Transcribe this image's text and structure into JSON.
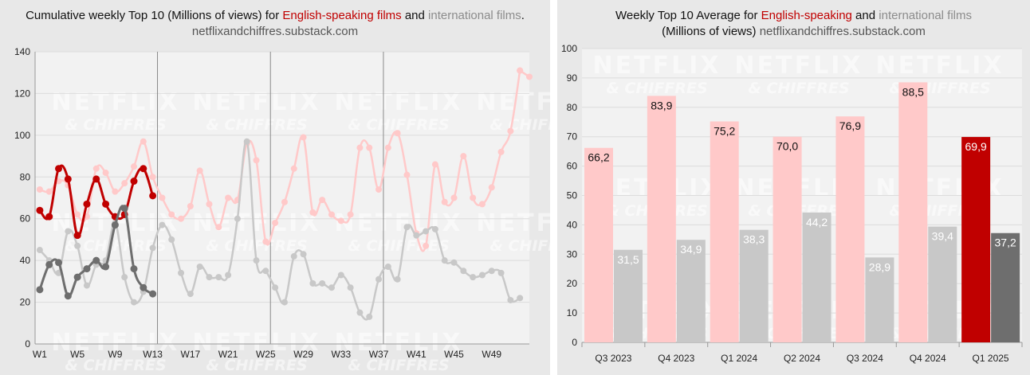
{
  "left": {
    "title_prefix": "Cumulative weekly Top 10 (Millions of views) for ",
    "title_en": "English-speaking films",
    "title_mid": " and ",
    "title_intl": "international films",
    "title_end": ".",
    "source": "netflixandchiffres.substack.com"
  },
  "right": {
    "title_prefix": "Weekly Top 10 Average for ",
    "title_en": "English-speaking",
    "title_mid": " and ",
    "title_intl": "international films",
    "title_line2": "(Millions of views) ",
    "source": "netflixandchiffres.substack.com"
  },
  "watermark": {
    "line1": "NETFLIX",
    "line2": "& CHIFFRES"
  },
  "colors": {
    "en_current": "#c00000",
    "en_past": "#ffc9c9",
    "intl_current": "#6e6e6e",
    "intl_past": "#c8c8c8",
    "plot_bg": "#f2f2f2"
  },
  "chart_data": [
    {
      "type": "line",
      "title": "Cumulative weekly Top 10 (Millions of views) for English-speaking films and international films.",
      "xlabel": "",
      "ylabel": "",
      "ylim": [
        0,
        140
      ],
      "yticks": [
        0,
        20,
        40,
        60,
        80,
        100,
        120,
        140
      ],
      "x_tick_labels": [
        "W1",
        "W5",
        "W9",
        "W13",
        "W17",
        "W21",
        "W25",
        "W29",
        "W33",
        "W37",
        "W41",
        "W45",
        "W49"
      ],
      "x_tick_weeks": [
        1,
        5,
        9,
        13,
        17,
        21,
        25,
        29,
        33,
        37,
        41,
        45,
        49
      ],
      "xlim": [
        0.5,
        53
      ],
      "week_dividers": [
        13.5,
        25.5,
        37.5
      ],
      "grid": true,
      "legend": "none",
      "series": [
        {
          "color_key": "en_past",
          "x": [
            1,
            2,
            3,
            4,
            5,
            6,
            7,
            8,
            9,
            10,
            11,
            12,
            13,
            14,
            15,
            16,
            17,
            18,
            19,
            20,
            21,
            22,
            23,
            24,
            25,
            26,
            27,
            28,
            29,
            30,
            31,
            32,
            33,
            34,
            35,
            36,
            37,
            38,
            39,
            40,
            41,
            42,
            43,
            44,
            45,
            46,
            47,
            48,
            49,
            50,
            51,
            52
          ],
          "values": [
            74,
            73,
            78,
            76,
            62,
            61,
            84,
            82,
            73,
            77,
            85,
            97,
            80,
            70,
            62,
            60,
            66,
            83,
            67,
            56,
            70,
            69,
            96,
            88,
            49,
            58,
            68,
            84,
            99,
            63,
            69,
            62,
            59,
            62,
            94,
            94,
            74,
            94,
            101,
            81,
            53,
            47,
            86,
            68,
            70,
            90,
            70,
            67,
            75,
            92,
            102,
            131
          ]
        },
        {
          "color_key": "en_past",
          "x": [
            52,
            53
          ],
          "values": [
            131,
            128
          ]
        },
        {
          "color_key": "intl_past",
          "x": [
            1,
            2,
            3,
            4,
            5,
            6,
            7,
            8,
            9,
            10,
            11,
            12,
            13,
            14,
            15,
            16,
            17,
            18,
            19,
            20,
            21,
            22,
            23,
            24,
            25,
            26,
            27,
            28,
            29,
            30,
            31,
            32,
            33,
            34,
            35,
            36,
            37,
            38,
            39,
            40,
            41,
            42,
            43,
            44,
            45,
            46,
            47,
            48,
            49,
            50,
            51,
            52
          ],
          "values": [
            45,
            40,
            34,
            54,
            47,
            28,
            38,
            40,
            58,
            32,
            20,
            25,
            46,
            57,
            50,
            34,
            24,
            37,
            32,
            32,
            33,
            60,
            97,
            40,
            35,
            27,
            20,
            42,
            43,
            29,
            29,
            27,
            33,
            27,
            15,
            13,
            31,
            37,
            31,
            56,
            52,
            54,
            55,
            40,
            39,
            35,
            32,
            33,
            35,
            34,
            21,
            22
          ]
        },
        {
          "color_key": "en_current",
          "x": [
            1,
            2,
            3,
            4,
            5,
            6,
            7,
            8,
            9,
            10,
            11,
            12,
            13
          ],
          "values": [
            64,
            61,
            84,
            79,
            52,
            67,
            79,
            67,
            61,
            62,
            78,
            84,
            71
          ]
        },
        {
          "color_key": "intl_current",
          "x": [
            1,
            2,
            3,
            4,
            5,
            6,
            7,
            8,
            9,
            10,
            11,
            12,
            13
          ],
          "values": [
            26,
            38,
            39,
            23,
            32,
            36,
            40,
            37,
            57,
            65,
            36,
            27,
            24
          ]
        }
      ]
    },
    {
      "type": "bar",
      "title": "Weekly Top 10 Average for English-speaking and international films (Millions of views)",
      "xlabel": "",
      "ylabel": "",
      "ylim": [
        0,
        100
      ],
      "yticks": [
        0,
        10,
        20,
        30,
        40,
        50,
        60,
        70,
        80,
        90,
        100
      ],
      "grid": true,
      "legend": "none",
      "categories": [
        "Q3 2023",
        "Q4 2023",
        "Q1 2024",
        "Q2 2024",
        "Q3 2024",
        "Q4 2024",
        "Q1 2025"
      ],
      "series": [
        {
          "values": [
            66.2,
            83.9,
            75.2,
            70.0,
            76.9,
            88.5,
            69.9
          ],
          "labels": [
            "66,2",
            "83,9",
            "75,2",
            "70,0",
            "76,9",
            "88,5",
            "69,9"
          ],
          "colors": [
            "en_past",
            "en_past",
            "en_past",
            "en_past",
            "en_past",
            "en_past",
            "en_current"
          ]
        },
        {
          "values": [
            31.5,
            34.9,
            38.3,
            44.2,
            28.9,
            39.4,
            37.2
          ],
          "labels": [
            "31,5",
            "34,9",
            "38,3",
            "44,2",
            "28,9",
            "39,4",
            "37,2"
          ],
          "colors": [
            "intl_past",
            "intl_past",
            "intl_past",
            "intl_past",
            "intl_past",
            "intl_past",
            "intl_current"
          ]
        }
      ]
    }
  ]
}
